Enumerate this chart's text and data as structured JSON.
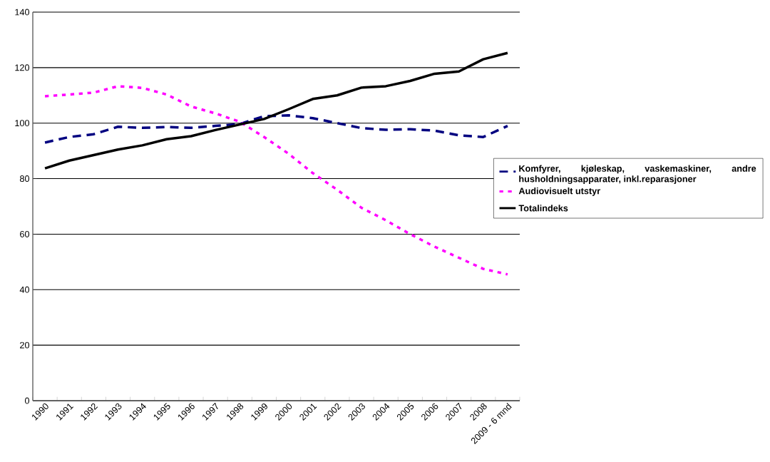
{
  "chart_data": {
    "type": "line",
    "categories": [
      "1990",
      "1991",
      "1992",
      "1993",
      "1994",
      "1995",
      "1996",
      "1997",
      "1998",
      "1999",
      "2000",
      "2001",
      "2002",
      "2003",
      "2004",
      "2005",
      "2006",
      "2007",
      "2008",
      "2009 - 6 mnd"
    ],
    "series": [
      {
        "name": "Komfyrer, kjøleskap, vaskemaskiner, andre husholdningsapparater, inkl.reparasjoner",
        "color": "#000080",
        "line_style": "dashed",
        "values": [
          93,
          95,
          96,
          98.7,
          98.3,
          98.6,
          98.3,
          99,
          99.7,
          102.5,
          102.8,
          101.8,
          100,
          98.2,
          97.6,
          97.8,
          97.3,
          95.6,
          95,
          99
        ]
      },
      {
        "name": "Audiovisuelt utstyr",
        "color": "#ff00ff",
        "line_style": "dotted",
        "values": [
          109.7,
          110.3,
          111,
          113.3,
          112.7,
          110.3,
          106,
          103.5,
          100.5,
          95,
          89,
          82,
          76,
          69.5,
          65,
          60,
          55.5,
          51.5,
          47.5,
          45.5
        ]
      },
      {
        "name": "Totalindeks",
        "color": "#000000",
        "line_style": "solid",
        "values": [
          83.7,
          86.5,
          88.5,
          90.5,
          92,
          94.2,
          95.3,
          97.5,
          99.5,
          101.5,
          105,
          108.7,
          110,
          112.8,
          113.3,
          115.2,
          117.8,
          118.6,
          123,
          125.3
        ]
      }
    ],
    "ylim": [
      0,
      140
    ],
    "yticks": [
      0,
      20,
      40,
      60,
      80,
      100,
      120,
      140
    ],
    "grid": "y",
    "legend": "right",
    "marker": "none"
  }
}
